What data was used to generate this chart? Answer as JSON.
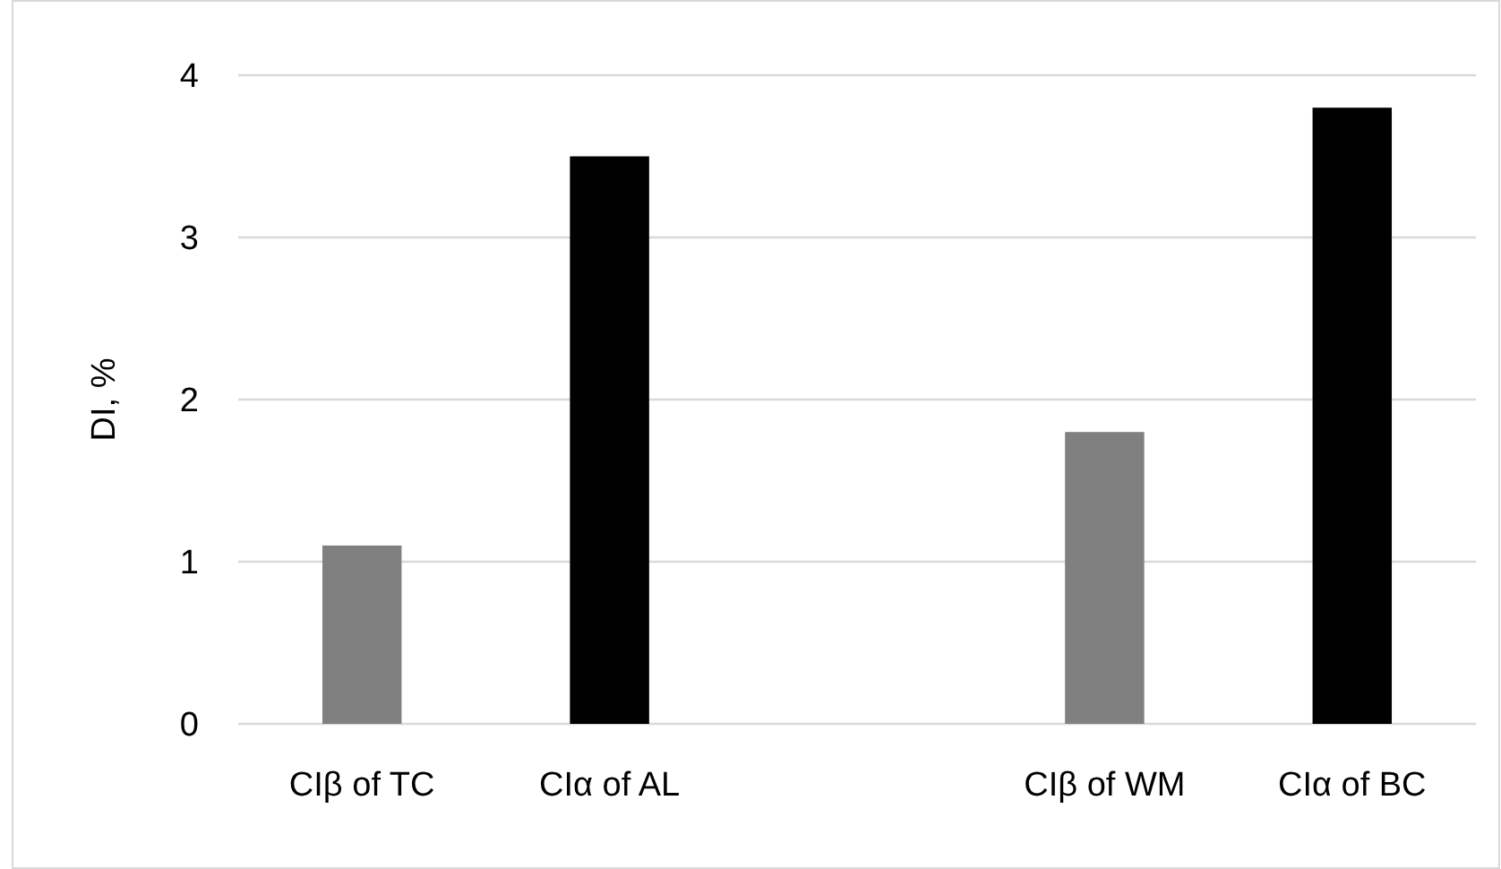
{
  "chart_data": {
    "type": "bar",
    "ylabel": "DI, %",
    "categories": [
      "CIβ of TC",
      "CIα of AL",
      null,
      "CIβ of WM",
      "CIα of BC"
    ],
    "values": [
      1.1,
      3.5,
      null,
      1.8,
      3.8
    ],
    "colors": [
      "#808080",
      "#000000",
      null,
      "#808080",
      "#000000"
    ],
    "ylim": [
      0,
      4
    ],
    "yticks": [
      0,
      1,
      2,
      3,
      4
    ],
    "grid": "y"
  }
}
